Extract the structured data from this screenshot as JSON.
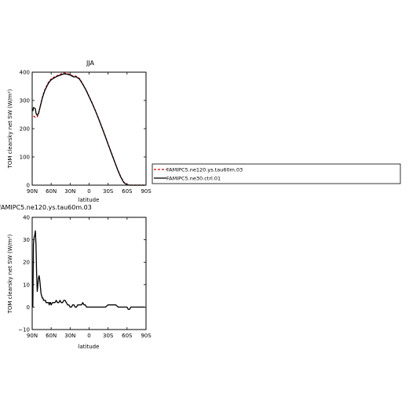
{
  "chart_data": [
    {
      "type": "line",
      "title": "JJA",
      "xlabel": "latitude",
      "ylabel": "TOM clearsky net SW (W/m²)",
      "xlim": [
        90,
        -90
      ],
      "ylim": [
        0,
        400
      ],
      "x_ticks": [
        90,
        60,
        30,
        0,
        -30,
        -60,
        -90
      ],
      "x_tick_labels": [
        "90N",
        "60N",
        "30N",
        "0",
        "30S",
        "60S",
        "90S"
      ],
      "y_ticks": [
        0,
        100,
        200,
        300,
        400
      ],
      "y_tick_labels": [
        "0",
        "100",
        "200",
        "300",
        "400"
      ],
      "legend_position": "right",
      "series": [
        {
          "name": "FAMIPC5.ne120.ys.tau60m.03",
          "color": "#cc0000",
          "dash": "dashed",
          "x": [
            88,
            85,
            82,
            80,
            78,
            76,
            74,
            72,
            70,
            67,
            64,
            60,
            55,
            50,
            45,
            40,
            35,
            30,
            27,
            24,
            22,
            20,
            18,
            15,
            12,
            10,
            5,
            0,
            -5,
            -10,
            -15,
            -20,
            -25,
            -30,
            -35,
            -40,
            -45,
            -50,
            -55,
            -60,
            -65,
            -70,
            -75,
            -80,
            -85,
            -88
          ],
          "y": [
            245,
            240,
            242,
            252,
            272,
            292,
            310,
            325,
            338,
            352,
            365,
            376,
            383,
            388,
            393,
            397,
            395,
            392,
            388,
            385,
            386,
            385,
            382,
            377,
            366,
            358,
            338,
            314,
            290,
            264,
            236,
            207,
            177,
            146,
            116,
            86,
            56,
            30,
            10,
            2,
            0,
            0,
            0,
            0,
            0,
            0
          ]
        },
        {
          "name": "FAMIPC5.ne30.ctrl.01",
          "color": "#000000",
          "dash": "solid",
          "x": [
            89,
            88,
            86,
            85,
            84,
            83,
            82,
            80,
            78,
            76,
            74,
            72,
            70,
            67,
            64,
            60,
            55,
            50,
            45,
            40,
            35,
            30,
            27,
            24,
            22,
            20,
            18,
            15,
            12,
            10,
            5,
            0,
            -5,
            -10,
            -15,
            -20,
            -25,
            -30,
            -35,
            -40,
            -45,
            -50,
            -55,
            -60,
            -65,
            -70,
            -75,
            -80,
            -85,
            -88
          ],
          "y": [
            262,
            275,
            272,
            271,
            255,
            250,
            248,
            254,
            272,
            290,
            308,
            322,
            335,
            349,
            362,
            373,
            380,
            386,
            390,
            394,
            393,
            390,
            386,
            383,
            384,
            383,
            380,
            375,
            364,
            357,
            337,
            313,
            289,
            263,
            235,
            206,
            176,
            145,
            115,
            85,
            55,
            29,
            9,
            1,
            0,
            0,
            0,
            0,
            0,
            0
          ]
        }
      ]
    },
    {
      "type": "line",
      "title": "FAMIPC5.ne120.ys.tau60m.03",
      "xlabel": "latitude",
      "ylabel": "TOM clearsky net SW (W/m²)",
      "xlim": [
        90,
        -90
      ],
      "ylim": [
        -10,
        40
      ],
      "x_ticks": [
        90,
        60,
        30,
        0,
        -30,
        -60,
        -90
      ],
      "x_tick_labels": [
        "90N",
        "60N",
        "30N",
        "0",
        "30S",
        "60S",
        "90S"
      ],
      "y_ticks": [
        -10,
        0,
        10,
        20,
        30,
        40
      ],
      "y_tick_labels": [
        "−10",
        "0",
        "10",
        "20",
        "30",
        "40"
      ],
      "series": [
        {
          "color": "#000000",
          "dash": "solid",
          "x": [
            89,
            88,
            87,
            86,
            85,
            84,
            83,
            82,
            81,
            80,
            79,
            78,
            77,
            76,
            75,
            74,
            73,
            72,
            71,
            70,
            69,
            68,
            67,
            66,
            65,
            64,
            63,
            62,
            61,
            60,
            58,
            56,
            54,
            52,
            50,
            48,
            46,
            44,
            42,
            40,
            38,
            36,
            34,
            32,
            30,
            28,
            26,
            24,
            22,
            20,
            18,
            16,
            14,
            12,
            10,
            8,
            6,
            4,
            2,
            0,
            -3,
            -6,
            -10,
            -14,
            -18,
            -22,
            -26,
            -30,
            -34,
            -38,
            -42,
            -46,
            -50,
            -54,
            -58,
            -60,
            -62,
            -64,
            -66,
            -70,
            -75,
            -80,
            -85,
            -88
          ],
          "y": [
            0,
            28,
            31,
            32,
            34,
            28,
            15,
            7,
            10,
            13,
            14,
            12,
            9,
            6,
            5,
            4,
            4,
            3,
            3,
            3,
            3,
            2,
            2,
            2,
            2,
            2,
            1,
            2,
            2,
            1,
            2,
            2,
            2,
            3,
            2,
            2,
            3,
            2,
            2,
            3,
            3,
            2,
            1,
            1,
            0,
            0,
            1,
            1,
            0,
            0,
            1,
            1,
            1,
            1,
            2,
            1,
            1,
            0,
            0,
            0,
            0,
            0,
            0,
            0,
            0,
            0,
            0,
            1,
            1,
            1,
            1,
            0,
            0,
            0,
            0,
            0,
            -1,
            -1,
            0,
            0,
            0,
            0,
            0,
            0
          ]
        }
      ]
    }
  ]
}
